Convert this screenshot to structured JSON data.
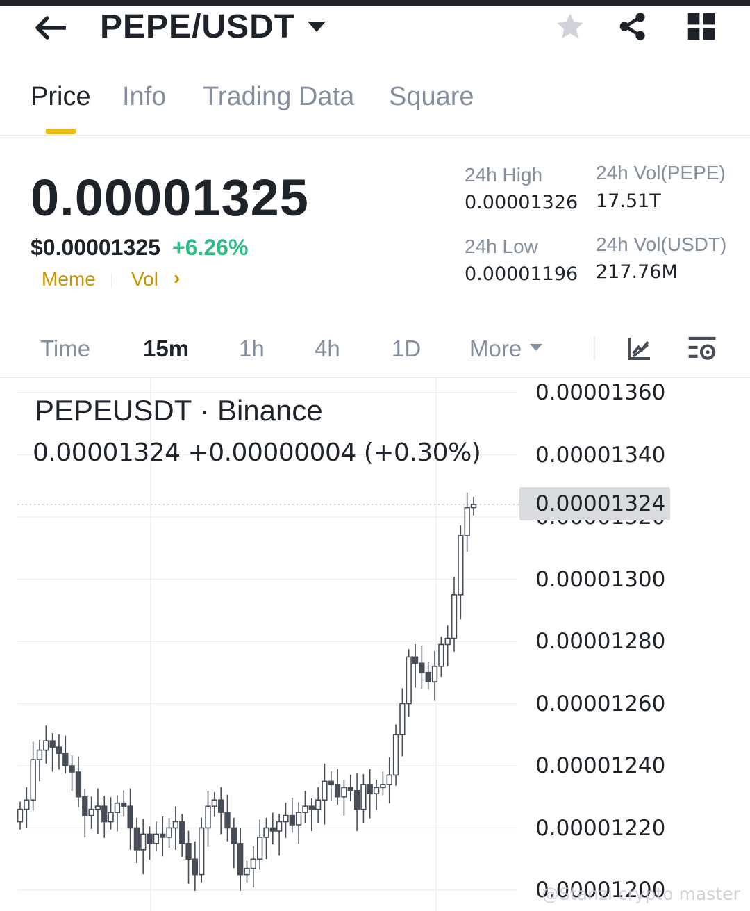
{
  "header": {
    "pair": "PEPE/USDT",
    "icons": [
      "back-arrow-icon",
      "star-icon",
      "share-icon",
      "grid-icon"
    ]
  },
  "tabs": [
    {
      "label": "Price",
      "active": true
    },
    {
      "label": "Info",
      "active": false
    },
    {
      "label": "Trading Data",
      "active": false
    },
    {
      "label": "Square",
      "active": false
    }
  ],
  "price": {
    "last": "0.00001325",
    "usd": "$0.00001325",
    "change_pct": "+6.26%",
    "tags": [
      "Meme",
      "Vol"
    ]
  },
  "stats": {
    "high_label": "24h High",
    "high_value": "0.00001326",
    "low_label": "24h Low",
    "low_value": "0.00001196",
    "vol_base_label": "24h Vol(PEPE)",
    "vol_base_value": "17.51T",
    "vol_quote_label": "24h Vol(USDT)",
    "vol_quote_value": "217.76M"
  },
  "timeframes": {
    "label": "Time",
    "items": [
      "15m",
      "1h",
      "4h",
      "1D"
    ],
    "active": "15m",
    "more_label": "More"
  },
  "colors": {
    "accent": "#f0b90b",
    "up": "#2ebd85",
    "tag": "#c99400",
    "candle": "#474d57"
  },
  "chart": {
    "title": "PEPEUSDT · Binance",
    "subtitle": "0.00001324  +0.00000004 (+0.30%)",
    "last_price_label": "0.00001324",
    "watermark": "@Stanzi crypto master"
  },
  "chart_data": {
    "type": "candlestick",
    "title": "PEPEUSDT · Binance",
    "interval": "15m",
    "y_ticks": [
      "0.00001360",
      "0.00001340",
      "0.00001320",
      "0.00001300",
      "0.00001280",
      "0.00001260",
      "0.00001240",
      "0.00001220",
      "0.00001200"
    ],
    "ylim": [
      1.2e-05,
      1.36e-05
    ],
    "last_price": 1.324e-05,
    "grid": true,
    "close": [
      12.26,
      12.29,
      12.42,
      12.45,
      12.48,
      12.46,
      12.44,
      12.4,
      12.38,
      12.3,
      12.24,
      12.26,
      12.27,
      12.22,
      12.25,
      12.28,
      12.27,
      12.2,
      12.13,
      12.18,
      12.15,
      12.18,
      12.17,
      12.2,
      12.22,
      12.15,
      12.1,
      12.05,
      12.2,
      12.27,
      12.29,
      12.25,
      12.2,
      12.15,
      12.05,
      12.07,
      12.1,
      12.17,
      12.2,
      12.19,
      12.22,
      12.24,
      12.21,
      12.25,
      12.27,
      12.26,
      12.29,
      12.35,
      12.34,
      12.3,
      12.33,
      12.32,
      12.26,
      12.34,
      12.31,
      12.33,
      12.34,
      12.37,
      12.5,
      12.6,
      12.75,
      12.73,
      12.7,
      12.67,
      12.72,
      12.79,
      12.81,
      12.95,
      13.14,
      13.23,
      13.24
    ]
  }
}
